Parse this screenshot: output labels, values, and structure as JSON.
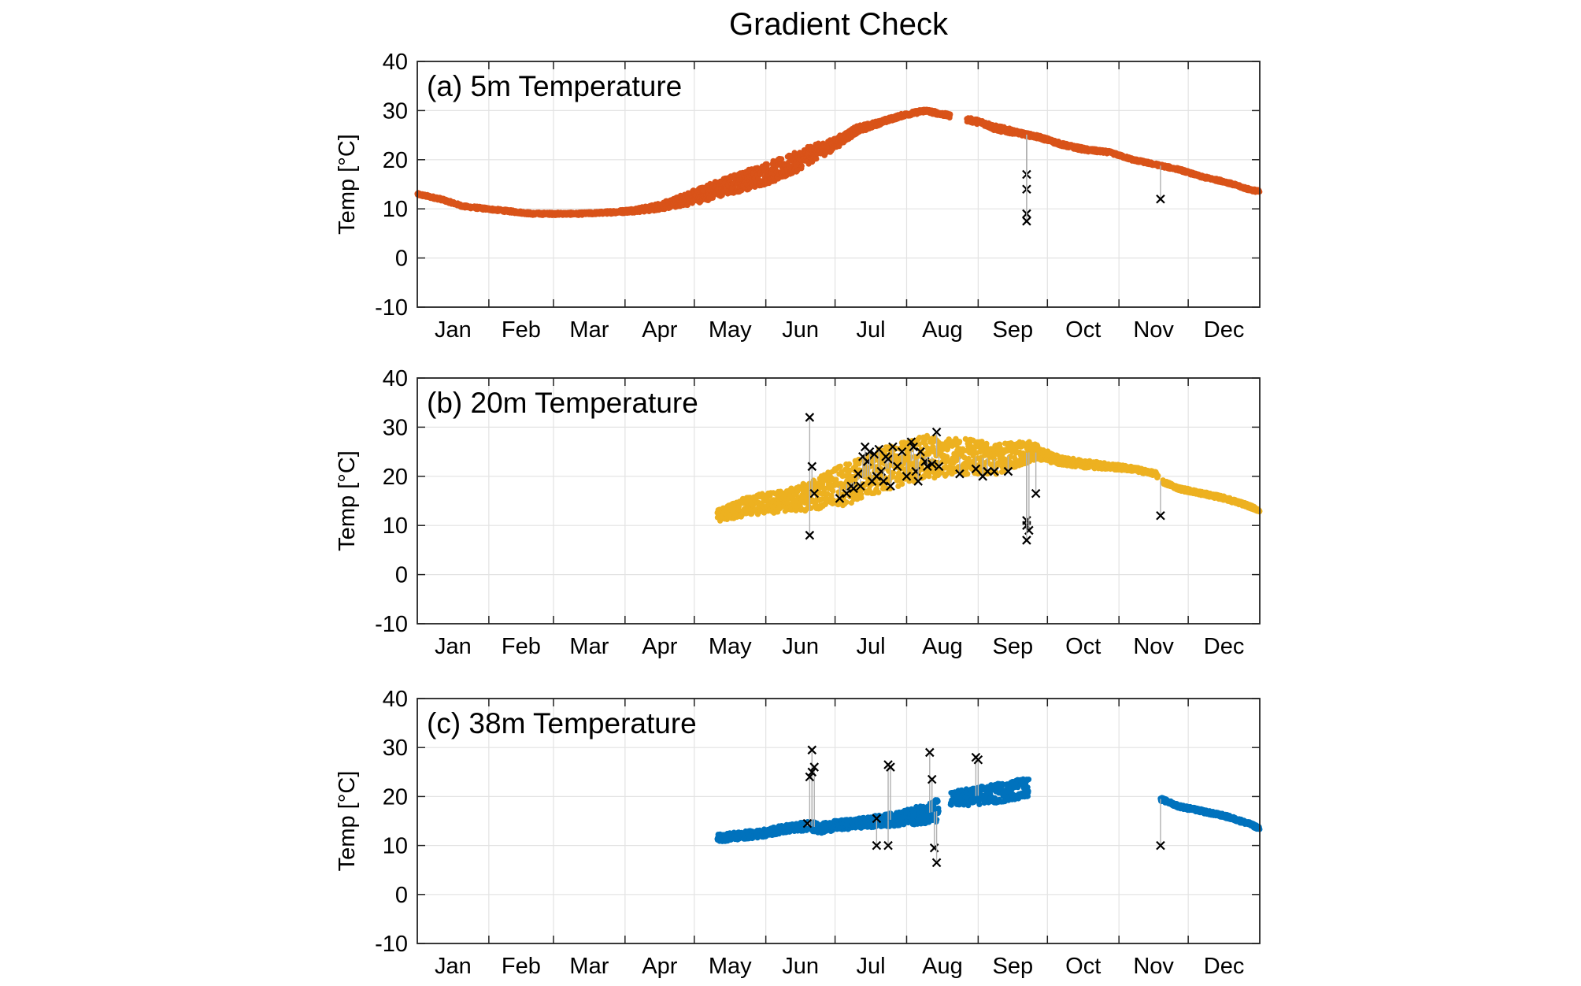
{
  "figure": {
    "title": "Gradient Check"
  },
  "chart_data": [
    {
      "type": "scatter",
      "panel_label": "(a) 5m Temperature",
      "ylabel": "Temp [°C]",
      "xlabel": "",
      "ylim": [
        -10,
        40
      ],
      "yticks": [
        -10,
        0,
        10,
        20,
        30,
        40
      ],
      "xlim": [
        0,
        365
      ],
      "xticks_labels": [
        "Jan",
        "Feb",
        "Mar",
        "Apr",
        "May",
        "Jun",
        "Jul",
        "Aug",
        "Sep",
        "Oct",
        "Nov",
        "Dec"
      ],
      "grid": true,
      "color": "#d95319",
      "series": [
        {
          "x": [
            0,
            10,
            20,
            30,
            40,
            50,
            60,
            70,
            80,
            90,
            100,
            110,
            120,
            130,
            140,
            150,
            160,
            170,
            180,
            190,
            200,
            210,
            220,
            230,
            240,
            245,
            250,
            255,
            260,
            270,
            280,
            290,
            300,
            310,
            320,
            330,
            340,
            350,
            360,
            365
          ],
          "y": [
            13,
            12,
            10.5,
            10,
            9.5,
            9,
            9,
            9,
            9.2,
            9.5,
            10,
            11,
            12.5,
            14,
            15.5,
            17,
            18.5,
            21,
            23,
            26,
            27.5,
            29,
            30,
            29,
            28,
            27.5,
            26.5,
            26,
            25.5,
            24.5,
            23,
            22,
            21.5,
            20,
            19,
            18,
            16.5,
            15.5,
            14,
            13.5
          ],
          "spread": [
            0.3,
            0.3,
            0.3,
            0.3,
            0.3,
            0.3,
            0.3,
            0.3,
            0.3,
            0.4,
            0.6,
            0.9,
            1.5,
            1.8,
            2.0,
            2.2,
            2.2,
            1.8,
            1.2,
            0.8,
            0.5,
            0.4,
            0.4,
            0.4,
            0.5,
            0.5,
            0.6,
            0.6,
            0.4,
            0.4,
            0.4,
            0.4,
            0.3,
            0.3,
            0.3,
            0.3,
            0.3,
            0.3,
            0.3,
            0.3
          ],
          "gaps": [
            [
              231,
              238
            ]
          ]
        }
      ],
      "flagged": [
        {
          "x": 264,
          "y": 17
        },
        {
          "x": 264,
          "y": 14
        },
        {
          "x": 264,
          "y": 9
        },
        {
          "x": 264,
          "y": 7.5
        },
        {
          "x": 322,
          "y": 12
        }
      ]
    },
    {
      "type": "scatter",
      "panel_label": "(b) 20m Temperature",
      "ylabel": "Temp [°C]",
      "xlabel": "",
      "ylim": [
        -10,
        40
      ],
      "yticks": [
        -10,
        0,
        10,
        20,
        30,
        40
      ],
      "xlim": [
        0,
        365
      ],
      "xticks_labels": [
        "Jan",
        "Feb",
        "Mar",
        "Apr",
        "May",
        "Jun",
        "Jul",
        "Aug",
        "Sep",
        "Oct",
        "Nov",
        "Dec"
      ],
      "grid": true,
      "color": "#edb120",
      "series": [
        {
          "x": [
            130,
            140,
            150,
            160,
            170,
            180,
            190,
            200,
            210,
            220,
            230,
            240,
            250,
            260,
            267,
            270,
            280,
            290,
            300,
            310,
            320,
            322,
            325,
            330,
            340,
            350,
            360,
            365
          ],
          "y": [
            12,
            13.5,
            14.5,
            15,
            16,
            17.5,
            19,
            21,
            22.5,
            24,
            24,
            24,
            23.5,
            24.5,
            25,
            24.5,
            23,
            22.5,
            22,
            21.5,
            20.5,
            19,
            18.5,
            17.5,
            16.5,
            15.5,
            14,
            13
          ],
          "spread": [
            1.2,
            1.8,
            2.2,
            2.2,
            3.0,
            4.0,
            4.2,
            4.5,
            4.5,
            4.5,
            4.0,
            3.5,
            3.2,
            2.5,
            2.0,
            1.2,
            0.8,
            0.8,
            0.6,
            0.5,
            0.4,
            0.4,
            0.4,
            0.4,
            0.4,
            0.4,
            0.4,
            0.3
          ],
          "gaps": [
            [
              321,
              323
            ]
          ]
        }
      ],
      "flagged": [
        {
          "x": 170,
          "y": 32
        },
        {
          "x": 171,
          "y": 22
        },
        {
          "x": 172,
          "y": 16.5
        },
        {
          "x": 170,
          "y": 8
        },
        {
          "x": 183,
          "y": 15.5
        },
        {
          "x": 186,
          "y": 16.5
        },
        {
          "x": 188,
          "y": 18
        },
        {
          "x": 189,
          "y": 17.5
        },
        {
          "x": 191,
          "y": 20.5
        },
        {
          "x": 192,
          "y": 18
        },
        {
          "x": 193,
          "y": 24
        },
        {
          "x": 194,
          "y": 26
        },
        {
          "x": 195,
          "y": 23
        },
        {
          "x": 196,
          "y": 25
        },
        {
          "x": 197,
          "y": 19
        },
        {
          "x": 198,
          "y": 24.5
        },
        {
          "x": 199,
          "y": 20
        },
        {
          "x": 200,
          "y": 25.5
        },
        {
          "x": 201,
          "y": 21
        },
        {
          "x": 202,
          "y": 19
        },
        {
          "x": 203,
          "y": 24
        },
        {
          "x": 204,
          "y": 23.5
        },
        {
          "x": 205,
          "y": 18
        },
        {
          "x": 206,
          "y": 26
        },
        {
          "x": 208,
          "y": 22
        },
        {
          "x": 210,
          "y": 25
        },
        {
          "x": 212,
          "y": 20
        },
        {
          "x": 214,
          "y": 27
        },
        {
          "x": 215,
          "y": 26
        },
        {
          "x": 216,
          "y": 21
        },
        {
          "x": 217,
          "y": 19
        },
        {
          "x": 218,
          "y": 25
        },
        {
          "x": 220,
          "y": 23
        },
        {
          "x": 221,
          "y": 22
        },
        {
          "x": 223,
          "y": 22.5
        },
        {
          "x": 225,
          "y": 29
        },
        {
          "x": 226,
          "y": 22
        },
        {
          "x": 235,
          "y": 20.5
        },
        {
          "x": 242,
          "y": 21.5
        },
        {
          "x": 245,
          "y": 20
        },
        {
          "x": 247,
          "y": 21
        },
        {
          "x": 250,
          "y": 21
        },
        {
          "x": 256,
          "y": 21
        },
        {
          "x": 264,
          "y": 11
        },
        {
          "x": 264,
          "y": 10
        },
        {
          "x": 265,
          "y": 9
        },
        {
          "x": 264,
          "y": 7
        },
        {
          "x": 268,
          "y": 16.5
        },
        {
          "x": 322,
          "y": 12
        }
      ]
    },
    {
      "type": "scatter",
      "panel_label": "(c) 38m Temperature",
      "ylabel": "Temp [°C]",
      "xlabel": "",
      "ylim": [
        -10,
        40
      ],
      "yticks": [
        -10,
        0,
        10,
        20,
        30,
        40
      ],
      "xlim": [
        0,
        365
      ],
      "xticks_labels": [
        "Jan",
        "Feb",
        "Mar",
        "Apr",
        "May",
        "Jun",
        "Jul",
        "Aug",
        "Sep",
        "Oct",
        "Nov",
        "Dec"
      ],
      "grid": true,
      "color": "#0072bd",
      "series": [
        {
          "x": [
            130,
            140,
            150,
            160,
            170,
            175,
            180,
            190,
            200,
            210,
            220,
            225,
            228,
            232,
            240,
            250,
            260,
            265
          ],
          "y": [
            11.5,
            12,
            12.5,
            13.5,
            14,
            13.5,
            14,
            14.5,
            15,
            15.5,
            16.5,
            17,
            18,
            19.5,
            20,
            20.5,
            21.5,
            22
          ],
          "spread": [
            0.8,
            0.8,
            0.8,
            0.8,
            1.0,
            1.0,
            1.0,
            1.0,
            1.2,
            1.5,
            2.0,
            2.5,
            2.5,
            1.5,
            1.8,
            2.0,
            2.0,
            2.0
          ],
          "gaps": [
            [
              226,
              231
            ]
          ]
        },
        {
          "x": [
            322,
            330,
            340,
            350,
            360,
            365
          ],
          "y": [
            19.5,
            18,
            17,
            16,
            14.5,
            13.5
          ],
          "spread": [
            0.4,
            0.4,
            0.4,
            0.4,
            0.4,
            0.4
          ],
          "gaps": []
        }
      ],
      "flagged": [
        {
          "x": 171,
          "y": 29.5
        },
        {
          "x": 172,
          "y": 26
        },
        {
          "x": 171,
          "y": 25
        },
        {
          "x": 170,
          "y": 24
        },
        {
          "x": 169,
          "y": 14.5
        },
        {
          "x": 199,
          "y": 15.5
        },
        {
          "x": 199,
          "y": 10
        },
        {
          "x": 204,
          "y": 10
        },
        {
          "x": 204,
          "y": 26.5
        },
        {
          "x": 205,
          "y": 26
        },
        {
          "x": 222,
          "y": 29
        },
        {
          "x": 223,
          "y": 23.5
        },
        {
          "x": 224,
          "y": 9.5
        },
        {
          "x": 225,
          "y": 6.5
        },
        {
          "x": 242,
          "y": 28
        },
        {
          "x": 243,
          "y": 27.5
        },
        {
          "x": 322,
          "y": 10
        }
      ]
    }
  ]
}
